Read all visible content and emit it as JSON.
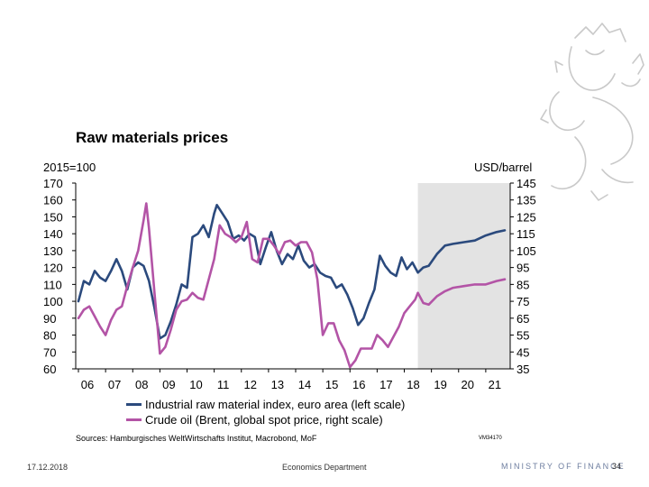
{
  "slide": {
    "title": "Raw materials prices",
    "sources": "Sources: Hamburgisches WeltWirtschafts Institut, Macrobond, MoF",
    "chart_code": "VM34170",
    "footer_date": "17.12.2018",
    "footer_department": "Economics Department",
    "footer_ministry": "MINISTRY OF FINANCE",
    "page_number": "34",
    "emblem": "finnish-lion-emblem"
  },
  "colors": {
    "series_index": "#2b4a7d",
    "series_oil": "#b354a6",
    "forecast_shade": "#e3e3e3"
  },
  "chart_data": {
    "type": "line",
    "title": "Raw materials prices",
    "left_axis": {
      "label": "2015=100",
      "ylim": [
        60,
        170
      ],
      "ticks": [
        170,
        160,
        150,
        140,
        130,
        120,
        110,
        100,
        90,
        80,
        70,
        60
      ]
    },
    "right_axis": {
      "label": "USD/barrel",
      "ylim": [
        35,
        145
      ],
      "ticks": [
        145,
        135,
        125,
        115,
        105,
        95,
        85,
        75,
        65,
        55,
        45,
        35
      ]
    },
    "x_axis": {
      "xlim": [
        2005.9,
        2021.9
      ],
      "ticks": [
        "06",
        "07",
        "08",
        "09",
        "10",
        "11",
        "12",
        "13",
        "14",
        "15",
        "16",
        "17",
        "18",
        "19",
        "20",
        "21"
      ],
      "tick_years": [
        2006,
        2007,
        2008,
        2009,
        2010,
        2011,
        2012,
        2013,
        2014,
        2015,
        2016,
        2017,
        2018,
        2019,
        2020,
        2021
      ]
    },
    "forecast_shading": {
      "from": 2018.5,
      "to": 2021.9
    },
    "legend": "bottom",
    "series": [
      {
        "name": "Industrial raw material index, euro area (left scale)",
        "axis": "left",
        "x": [
          2006.0,
          2006.2,
          2006.4,
          2006.6,
          2006.8,
          2007.0,
          2007.2,
          2007.4,
          2007.6,
          2007.8,
          2008.0,
          2008.2,
          2008.4,
          2008.6,
          2008.8,
          2009.0,
          2009.2,
          2009.4,
          2009.6,
          2009.8,
          2010.0,
          2010.2,
          2010.4,
          2010.6,
          2010.8,
          2011.0,
          2011.1,
          2011.3,
          2011.5,
          2011.7,
          2011.9,
          2012.1,
          2012.3,
          2012.5,
          2012.7,
          2012.9,
          2013.1,
          2013.3,
          2013.5,
          2013.7,
          2013.9,
          2014.1,
          2014.3,
          2014.5,
          2014.7,
          2014.9,
          2015.1,
          2015.3,
          2015.5,
          2015.7,
          2015.9,
          2016.1,
          2016.3,
          2016.5,
          2016.7,
          2016.9,
          2017.1,
          2017.3,
          2017.5,
          2017.7,
          2017.9,
          2018.1,
          2018.3,
          2018.5,
          2018.7,
          2018.9,
          2019.2,
          2019.5,
          2019.8,
          2020.2,
          2020.6,
          2021.0,
          2021.4,
          2021.7
        ],
        "values": [
          100,
          112,
          110,
          118,
          114,
          112,
          118,
          125,
          118,
          107,
          120,
          123,
          121,
          112,
          96,
          78,
          80,
          88,
          98,
          110,
          108,
          138,
          140,
          145,
          138,
          152,
          157,
          152,
          147,
          137,
          139,
          136,
          140,
          138,
          122,
          132,
          141,
          130,
          122,
          128,
          125,
          133,
          124,
          120,
          122,
          117,
          115,
          114,
          108,
          110,
          104,
          96,
          86,
          90,
          99,
          107,
          127,
          121,
          117,
          115,
          126,
          119,
          123,
          117,
          120,
          121,
          128,
          133,
          134,
          135,
          136,
          139,
          141,
          142
        ]
      },
      {
        "name": "Crude oil (Brent, global spot price, right scale)",
        "axis": "right",
        "x": [
          2006.0,
          2006.2,
          2006.4,
          2006.6,
          2006.8,
          2007.0,
          2007.2,
          2007.4,
          2007.6,
          2007.8,
          2008.0,
          2008.2,
          2008.4,
          2008.5,
          2008.6,
          2008.8,
          2009.0,
          2009.2,
          2009.4,
          2009.6,
          2009.8,
          2010.0,
          2010.2,
          2010.4,
          2010.6,
          2010.8,
          2011.0,
          2011.2,
          2011.4,
          2011.6,
          2011.8,
          2012.0,
          2012.2,
          2012.4,
          2012.6,
          2012.8,
          2013.0,
          2013.2,
          2013.4,
          2013.6,
          2013.8,
          2014.0,
          2014.2,
          2014.4,
          2014.6,
          2014.8,
          2015.0,
          2015.2,
          2015.4,
          2015.6,
          2015.8,
          2016.0,
          2016.2,
          2016.4,
          2016.6,
          2016.8,
          2017.0,
          2017.2,
          2017.4,
          2017.6,
          2017.8,
          2018.0,
          2018.2,
          2018.4,
          2018.5,
          2018.7,
          2018.9,
          2019.2,
          2019.5,
          2019.8,
          2020.2,
          2020.6,
          2021.0,
          2021.4,
          2021.7
        ],
        "values": [
          65,
          70,
          72,
          66,
          60,
          55,
          64,
          70,
          72,
          84,
          95,
          105,
          123,
          133,
          118,
          80,
          44,
          48,
          58,
          70,
          75,
          76,
          80,
          77,
          76,
          88,
          100,
          120,
          115,
          113,
          110,
          113,
          122,
          100,
          98,
          112,
          112,
          108,
          103,
          110,
          111,
          108,
          110,
          110,
          104,
          88,
          55,
          62,
          62,
          52,
          46,
          36,
          40,
          47,
          47,
          47,
          55,
          52,
          48,
          54,
          60,
          68,
          72,
          76,
          80,
          74,
          73,
          78,
          81,
          83,
          84,
          85,
          85,
          87,
          88
        ]
      }
    ]
  }
}
